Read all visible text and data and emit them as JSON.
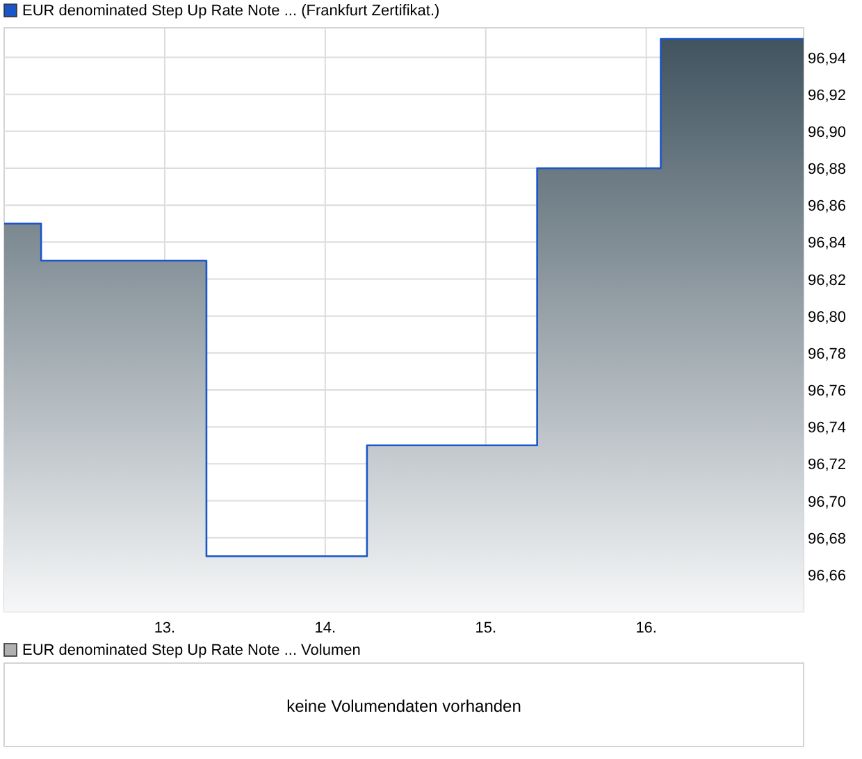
{
  "chart_data": [
    {
      "type": "area",
      "title": "(Frankfurt Zertifikat.)",
      "series": [
        {
          "name": "EUR denominated Step Up Rate Note ...",
          "color": "#1a56c8",
          "x": [
            12,
            12.23,
            12.23,
            13.26,
            13.26,
            14.26,
            14.26,
            15.32,
            15.32,
            16.09,
            16.09,
            16.98
          ],
          "values": [
            96.85,
            96.85,
            96.83,
            96.83,
            96.67,
            96.67,
            96.73,
            96.73,
            96.88,
            96.88,
            96.95,
            96.95
          ]
        }
      ],
      "xlim": [
        12,
        16.98
      ],
      "xticks": [
        {
          "value": 13,
          "label": "13."
        },
        {
          "value": 14,
          "label": "14."
        },
        {
          "value": 15,
          "label": "15."
        },
        {
          "value": 16,
          "label": "16."
        }
      ],
      "ylim": [
        96.64,
        96.956
      ],
      "yticks": [
        {
          "value": 96.66,
          "label": "96,66"
        },
        {
          "value": 96.68,
          "label": "96,68"
        },
        {
          "value": 96.7,
          "label": "96,70"
        },
        {
          "value": 96.72,
          "label": "96,72"
        },
        {
          "value": 96.74,
          "label": "96,74"
        },
        {
          "value": 96.76,
          "label": "96,76"
        },
        {
          "value": 96.78,
          "label": "96,78"
        },
        {
          "value": 96.8,
          "label": "96,80"
        },
        {
          "value": 96.82,
          "label": "96,82"
        },
        {
          "value": 96.84,
          "label": "96,84"
        },
        {
          "value": 96.86,
          "label": "96,86"
        },
        {
          "value": 96.88,
          "label": "96,88"
        },
        {
          "value": 96.9,
          "label": "96,90"
        },
        {
          "value": 96.92,
          "label": "96,92"
        },
        {
          "value": 96.94,
          "label": "96,94"
        }
      ],
      "grid": true,
      "legend": "top left"
    },
    {
      "type": "other",
      "title": "EUR denominated Step Up Rate Note ... Volumen",
      "annotations": [
        "keine Volumendaten vorhanden"
      ]
    }
  ]
}
